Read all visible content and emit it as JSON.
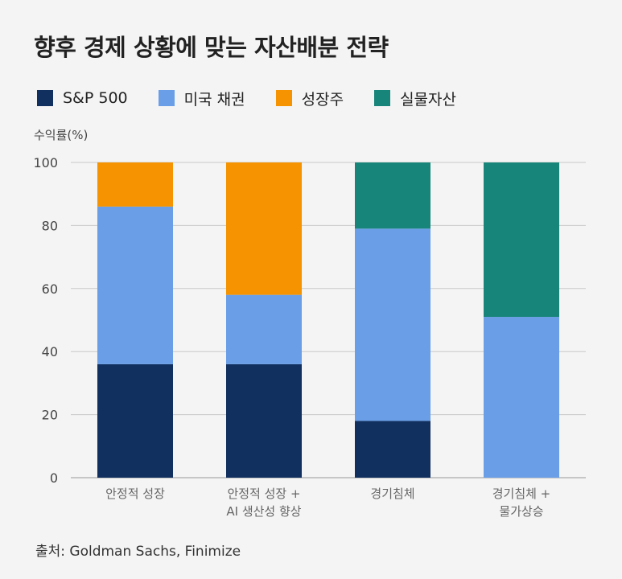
{
  "title": "향후 경제 상황에 맞는 자산배분 전략",
  "colors": {
    "sp500": "#11305f",
    "us_bonds": "#6a9fe8",
    "growth_stocks": "#f59300",
    "real_assets": "#18857a"
  },
  "chart_data": {
    "type": "bar",
    "stacked": true,
    "ylabel": "수익률(%)",
    "ylim": [
      0,
      100
    ],
    "yticks": [
      0,
      20,
      40,
      60,
      80,
      100
    ],
    "grid": true,
    "legend_position": "top",
    "categories": [
      [
        "안정적 성장"
      ],
      [
        "안정적 성장 +",
        "AI 생산성 향상"
      ],
      [
        "경기침체"
      ],
      [
        "경기침체 +",
        "물가상승"
      ]
    ],
    "series": [
      {
        "name": "S&P 500",
        "color": "#11305f",
        "values": [
          36,
          36,
          18,
          0
        ]
      },
      {
        "name": "미국 채권",
        "color": "#6a9fe8",
        "values": [
          50,
          22,
          61,
          51
        ]
      },
      {
        "name": "성장주",
        "color": "#f59300",
        "values": [
          14,
          42,
          0,
          0
        ]
      },
      {
        "name": "실물자산",
        "color": "#18857a",
        "values": [
          0,
          0,
          21,
          49
        ]
      }
    ]
  },
  "source": "출처: Goldman Sachs, Finimize"
}
